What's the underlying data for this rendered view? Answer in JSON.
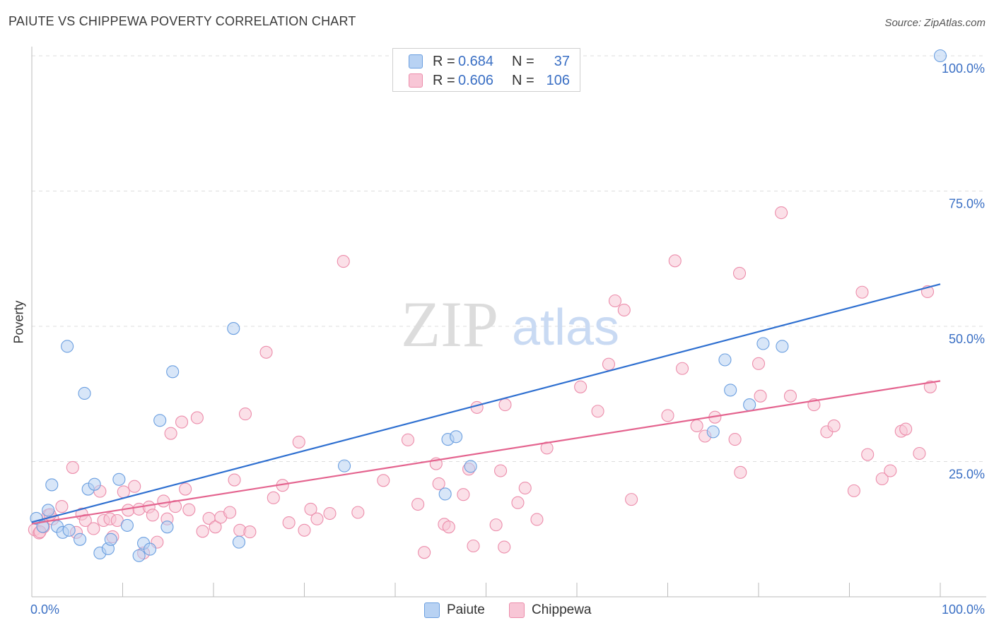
{
  "header": {
    "title": "PAIUTE VS CHIPPEWA POVERTY CORRELATION CHART",
    "source": "Source: ZipAtlas.com"
  },
  "watermark": {
    "zip": "ZIP",
    "atlas": "atlas"
  },
  "colors": {
    "paiute_fill": "#b8d2f3",
    "paiute_stroke": "#6b9fe0",
    "paiute_line": "#2e6fd0",
    "chippewa_fill": "#f8c6d6",
    "chippewa_stroke": "#ec8dab",
    "chippewa_line": "#e4648f",
    "axis_text": "#3a6fc4",
    "grid": "#dddddd"
  },
  "legend": {
    "rows": [
      {
        "r_label": "R =",
        "r_value": "0.684",
        "n_label": "N =",
        "n_value": "37"
      },
      {
        "r_label": "R =",
        "r_value": "0.606",
        "n_label": "N =",
        "n_value": "106"
      }
    ]
  },
  "bottom_legend": {
    "paiute": "Paiute",
    "chippewa": "Chippewa"
  },
  "chart_data": {
    "type": "scatter",
    "title": "PAIUTE VS CHIPPEWA POVERTY CORRELATION CHART",
    "xlabel": "",
    "ylabel": "Poverty",
    "xlim": [
      0,
      100
    ],
    "ylim": [
      0,
      100
    ],
    "x_tick_labels": [
      "0.0%",
      "100.0%"
    ],
    "y_ticks": [
      25,
      50,
      75,
      100
    ],
    "y_tick_labels": [
      "25.0%",
      "50.0%",
      "75.0%",
      "100.0%"
    ],
    "grid": true,
    "legend_position": "top-center",
    "series": [
      {
        "name": "Paiute",
        "r": 0.684,
        "n": 37,
        "trend": {
          "x": [
            0,
            100
          ],
          "y": [
            13.8,
            57.8
          ]
        },
        "points": [
          [
            0.5,
            14.5
          ],
          [
            1.2,
            13.0
          ],
          [
            1.8,
            16.0
          ],
          [
            2.2,
            20.7
          ],
          [
            2.8,
            13.0
          ],
          [
            3.4,
            11.9
          ],
          [
            3.9,
            46.3
          ],
          [
            4.1,
            12.3
          ],
          [
            5.3,
            10.6
          ],
          [
            5.8,
            37.6
          ],
          [
            6.2,
            19.9
          ],
          [
            6.9,
            20.8
          ],
          [
            7.5,
            8.1
          ],
          [
            8.4,
            8.9
          ],
          [
            8.7,
            10.6
          ],
          [
            9.6,
            21.7
          ],
          [
            10.5,
            13.2
          ],
          [
            11.8,
            7.6
          ],
          [
            12.3,
            9.9
          ],
          [
            13.0,
            8.8
          ],
          [
            14.1,
            32.6
          ],
          [
            14.9,
            12.9
          ],
          [
            15.5,
            41.6
          ],
          [
            22.2,
            49.6
          ],
          [
            22.8,
            10.1
          ],
          [
            34.4,
            24.2
          ],
          [
            45.5,
            19.0
          ],
          [
            45.8,
            29.1
          ],
          [
            46.7,
            29.6
          ],
          [
            48.3,
            24.1
          ],
          [
            75.0,
            30.5
          ],
          [
            76.9,
            38.2
          ],
          [
            76.3,
            43.8
          ],
          [
            79.0,
            35.5
          ],
          [
            80.5,
            46.8
          ],
          [
            82.6,
            46.3
          ],
          [
            100.0,
            100.0
          ]
        ]
      },
      {
        "name": "Chippewa",
        "r": 0.606,
        "n": 106,
        "trend": {
          "x": [
            0,
            100
          ],
          "y": [
            13.5,
            39.9
          ]
        },
        "points": [
          [
            0.3,
            12.4
          ],
          [
            0.8,
            11.8
          ],
          [
            1.3,
            12.9
          ],
          [
            1.8,
            15.1
          ],
          [
            2.3,
            14.4
          ],
          [
            3.3,
            16.7
          ],
          [
            4.5,
            23.9
          ],
          [
            4.9,
            11.9
          ],
          [
            5.5,
            15.3
          ],
          [
            5.9,
            14.1
          ],
          [
            6.8,
            12.6
          ],
          [
            7.5,
            19.5
          ],
          [
            7.9,
            14.1
          ],
          [
            8.6,
            14.4
          ],
          [
            8.9,
            11.1
          ],
          [
            9.4,
            14.1
          ],
          [
            10.1,
            19.4
          ],
          [
            10.6,
            16.0
          ],
          [
            11.3,
            20.4
          ],
          [
            11.8,
            16.2
          ],
          [
            12.3,
            8.1
          ],
          [
            12.9,
            16.6
          ],
          [
            13.3,
            15.1
          ],
          [
            13.8,
            10.1
          ],
          [
            14.5,
            17.7
          ],
          [
            14.9,
            14.4
          ],
          [
            15.3,
            30.2
          ],
          [
            15.8,
            16.7
          ],
          [
            16.5,
            32.3
          ],
          [
            16.9,
            19.9
          ],
          [
            17.3,
            16.1
          ],
          [
            18.2,
            33.1
          ],
          [
            18.8,
            12.1
          ],
          [
            19.5,
            14.5
          ],
          [
            20.2,
            12.9
          ],
          [
            20.8,
            14.7
          ],
          [
            21.8,
            15.6
          ],
          [
            22.3,
            21.6
          ],
          [
            22.9,
            12.3
          ],
          [
            23.5,
            33.8
          ],
          [
            24.0,
            12.0
          ],
          [
            25.8,
            45.2
          ],
          [
            26.6,
            18.3
          ],
          [
            27.6,
            20.6
          ],
          [
            28.3,
            13.7
          ],
          [
            29.4,
            28.6
          ],
          [
            30.0,
            12.3
          ],
          [
            30.7,
            16.2
          ],
          [
            31.4,
            14.4
          ],
          [
            32.8,
            15.4
          ],
          [
            34.3,
            62.0
          ],
          [
            35.9,
            15.6
          ],
          [
            38.7,
            21.5
          ],
          [
            41.4,
            29.0
          ],
          [
            42.5,
            17.1
          ],
          [
            43.2,
            8.2
          ],
          [
            44.5,
            24.6
          ],
          [
            44.8,
            20.9
          ],
          [
            45.4,
            13.4
          ],
          [
            45.9,
            12.9
          ],
          [
            47.5,
            18.9
          ],
          [
            48.1,
            23.6
          ],
          [
            48.6,
            9.4
          ],
          [
            49.0,
            35.0
          ],
          [
            51.1,
            13.3
          ],
          [
            51.6,
            23.3
          ],
          [
            52.1,
            35.5
          ],
          [
            53.5,
            17.4
          ],
          [
            54.3,
            20.1
          ],
          [
            55.6,
            14.3
          ],
          [
            56.7,
            27.5
          ],
          [
            60.4,
            38.8
          ],
          [
            62.3,
            34.3
          ],
          [
            63.5,
            43.0
          ],
          [
            64.2,
            54.7
          ],
          [
            65.2,
            53.0
          ],
          [
            70.0,
            33.5
          ],
          [
            70.8,
            62.1
          ],
          [
            71.6,
            42.2
          ],
          [
            73.2,
            31.6
          ],
          [
            74.1,
            29.7
          ],
          [
            75.2,
            33.2
          ],
          [
            77.4,
            29.1
          ],
          [
            77.9,
            59.8
          ],
          [
            78.0,
            23.0
          ],
          [
            80.0,
            43.1
          ],
          [
            80.2,
            37.1
          ],
          [
            82.5,
            71.0
          ],
          [
            83.5,
            37.1
          ],
          [
            86.1,
            35.5
          ],
          [
            87.5,
            30.5
          ],
          [
            88.3,
            31.6
          ],
          [
            90.5,
            19.6
          ],
          [
            91.4,
            56.3
          ],
          [
            92.0,
            26.3
          ],
          [
            93.6,
            21.8
          ],
          [
            94.5,
            23.3
          ],
          [
            95.7,
            30.6
          ],
          [
            96.2,
            31.0
          ],
          [
            97.7,
            26.5
          ],
          [
            98.6,
            56.4
          ],
          [
            98.9,
            38.8
          ],
          [
            0.9,
            12.0
          ],
          [
            2.0,
            15.2
          ],
          [
            52.0,
            9.2
          ],
          [
            66.0,
            18.0
          ]
        ]
      }
    ]
  }
}
